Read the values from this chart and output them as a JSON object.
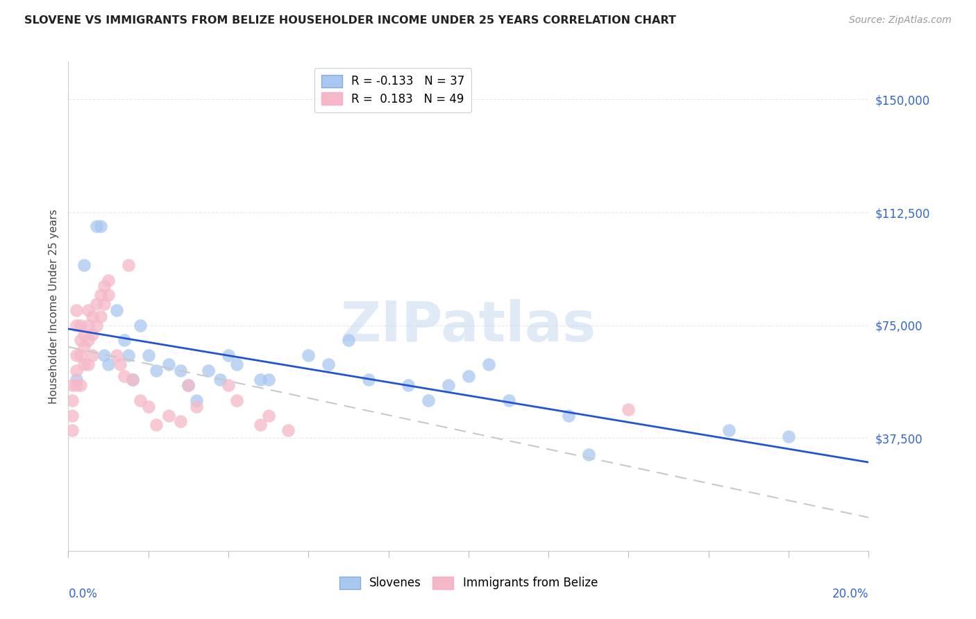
{
  "title": "SLOVENE VS IMMIGRANTS FROM BELIZE HOUSEHOLDER INCOME UNDER 25 YEARS CORRELATION CHART",
  "source": "Source: ZipAtlas.com",
  "ylabel": "Householder Income Under 25 years",
  "xlim": [
    0.0,
    0.2
  ],
  "ylim": [
    0,
    162500
  ],
  "yticks": [
    0,
    37500,
    75000,
    112500,
    150000
  ],
  "ytick_labels": [
    "",
    "$37,500",
    "$75,000",
    "$112,500",
    "$150,000"
  ],
  "blue_color": "#A8C8F0",
  "pink_color": "#F5B8C8",
  "blue_line_color": "#2255CC",
  "pink_line_color": "#C8C8C8",
  "grid_color": "#E8E8E8",
  "legend_R_blue": "-0.133",
  "legend_N_blue": "37",
  "legend_R_pink": "0.183",
  "legend_N_pink": "49",
  "blue_scatter_x": [
    0.002,
    0.004,
    0.007,
    0.008,
    0.009,
    0.01,
    0.012,
    0.014,
    0.015,
    0.016,
    0.018,
    0.02,
    0.022,
    0.025,
    0.028,
    0.03,
    0.032,
    0.035,
    0.038,
    0.04,
    0.042,
    0.048,
    0.05,
    0.06,
    0.065,
    0.07,
    0.075,
    0.085,
    0.09,
    0.095,
    0.1,
    0.105,
    0.11,
    0.125,
    0.13,
    0.165,
    0.18
  ],
  "blue_scatter_y": [
    57000,
    95000,
    108000,
    108000,
    65000,
    62000,
    80000,
    70000,
    65000,
    57000,
    75000,
    65000,
    60000,
    62000,
    60000,
    55000,
    50000,
    60000,
    57000,
    65000,
    62000,
    57000,
    57000,
    65000,
    62000,
    70000,
    57000,
    55000,
    50000,
    55000,
    58000,
    62000,
    50000,
    45000,
    32000,
    40000,
    38000
  ],
  "pink_scatter_x": [
    0.001,
    0.001,
    0.001,
    0.001,
    0.002,
    0.002,
    0.002,
    0.002,
    0.002,
    0.003,
    0.003,
    0.003,
    0.003,
    0.004,
    0.004,
    0.004,
    0.005,
    0.005,
    0.005,
    0.005,
    0.006,
    0.006,
    0.006,
    0.007,
    0.007,
    0.008,
    0.008,
    0.009,
    0.009,
    0.01,
    0.01,
    0.012,
    0.013,
    0.014,
    0.015,
    0.016,
    0.018,
    0.02,
    0.022,
    0.025,
    0.028,
    0.03,
    0.032,
    0.04,
    0.042,
    0.048,
    0.05,
    0.055,
    0.14
  ],
  "pink_scatter_y": [
    55000,
    50000,
    45000,
    40000,
    80000,
    75000,
    65000,
    60000,
    55000,
    75000,
    70000,
    65000,
    55000,
    72000,
    68000,
    62000,
    80000,
    75000,
    70000,
    62000,
    78000,
    72000,
    65000,
    82000,
    75000,
    85000,
    78000,
    88000,
    82000,
    90000,
    85000,
    65000,
    62000,
    58000,
    95000,
    57000,
    50000,
    48000,
    42000,
    45000,
    43000,
    55000,
    48000,
    55000,
    50000,
    42000,
    45000,
    40000,
    47000
  ],
  "title_fontsize": 11.5,
  "source_fontsize": 10,
  "axis_label_fontsize": 11,
  "tick_fontsize": 12,
  "legend_fontsize": 12
}
